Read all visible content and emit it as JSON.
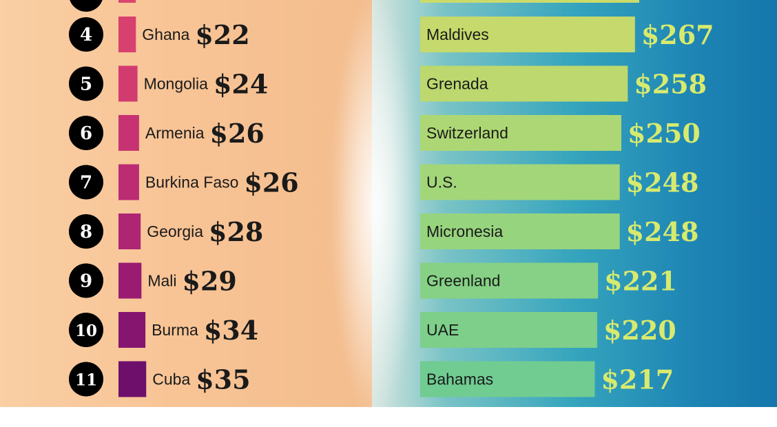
{
  "chart_data": [
    {
      "type": "bar",
      "orientation": "horizontal",
      "ranks": [
        4,
        5,
        6,
        7,
        8,
        9,
        10,
        11
      ],
      "categories": [
        "Ghana",
        "Mongolia",
        "Armenia",
        "Burkina Faso",
        "Georgia",
        "Mali",
        "Burma",
        "Cuba"
      ],
      "values": [
        22,
        24,
        26,
        26,
        28,
        29,
        34,
        35
      ],
      "value_labels": [
        "$22",
        "$24",
        "$26",
        "$26",
        "$28",
        "$29",
        "$34",
        "$35"
      ],
      "colors": [
        "#d8416f",
        "#d23b70",
        "#c73372",
        "#bb2c73",
        "#ae2574",
        "#9a1c72",
        "#85156f",
        "#6e0f6b"
      ]
    },
    {
      "type": "bar",
      "orientation": "horizontal",
      "categories": [
        "Maldives",
        "Grenada",
        "Switzerland",
        "U.S.",
        "Micronesia",
        "Greenland",
        "UAE",
        "Bahamas"
      ],
      "values": [
        267,
        258,
        250,
        248,
        248,
        221,
        220,
        217
      ],
      "value_labels": [
        "$267",
        "$258",
        "$250",
        "$248",
        "$248",
        "$221",
        "$220",
        "$217"
      ],
      "colors": [
        "#c5d96c",
        "#bcd86e",
        "#add774",
        "#a2d679",
        "#97d47e",
        "#86d185",
        "#7dcf8a",
        "#70cc91"
      ]
    }
  ]
}
